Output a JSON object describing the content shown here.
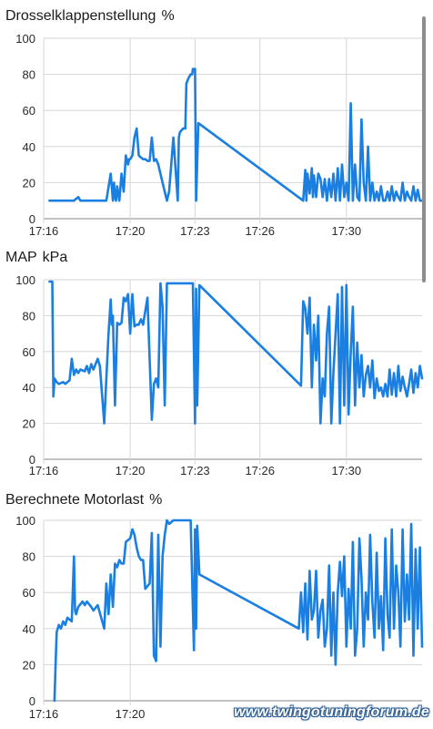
{
  "chart_data": [
    {
      "type": "line",
      "title": "Drosselklappenstellung",
      "unit": "%",
      "x_ticks": [
        "17:16",
        "17:20",
        "17:23",
        "17:26",
        "17:30"
      ],
      "x_tick_minutes": [
        16,
        20,
        23,
        26,
        30
      ],
      "xlim_minutes": [
        16,
        33.5
      ],
      "y_ticks": [
        "0",
        "20",
        "40",
        "60",
        "80",
        "100"
      ],
      "ylim": [
        0,
        100
      ],
      "grid": true,
      "color": "#1a7fe0",
      "series": [
        {
          "x": [
            16.27,
            16.9,
            17.4,
            17.6,
            17.7,
            17.9,
            18.4,
            18.9,
            19.1,
            19.2,
            19.25,
            19.3,
            19.35,
            19.4,
            19.5,
            19.6,
            19.7,
            19.8,
            19.9,
            19.95,
            20.0,
            20.1,
            20.2,
            20.3,
            20.4,
            20.6,
            20.7,
            20.8,
            20.9,
            21.0,
            21.1,
            21.2,
            21.3,
            21.5,
            21.7,
            21.8,
            22.0,
            22.2,
            22.25,
            22.3,
            22.45,
            22.55,
            22.6,
            22.7,
            22.8,
            22.83,
            22.87,
            22.9,
            23.0,
            23.05,
            23.15,
            28.0,
            28.1,
            28.15,
            28.2,
            28.3,
            28.4,
            28.45,
            28.5,
            28.6,
            28.7,
            28.8,
            28.9,
            29.0,
            29.1,
            29.2,
            29.3,
            29.4,
            29.5,
            29.6,
            29.7,
            29.8,
            29.9,
            30.0,
            30.1,
            30.2,
            30.3,
            30.4,
            30.5,
            30.6,
            30.7,
            30.8,
            30.9,
            31.0,
            31.1,
            31.2,
            31.3,
            31.4,
            31.5,
            31.6,
            31.7,
            31.8,
            31.9,
            32.0,
            32.1,
            32.2,
            32.3,
            32.4,
            32.5,
            32.6,
            32.7,
            32.8,
            32.9,
            33.0,
            33.1,
            33.2,
            33.3,
            33.4,
            33.5
          ],
          "y": [
            10,
            10,
            10,
            12,
            10,
            10,
            10,
            10,
            25,
            10,
            20,
            12,
            10,
            18,
            10,
            25,
            15,
            35,
            30,
            33,
            33,
            35,
            45,
            50,
            35,
            33,
            33,
            32,
            32,
            45,
            32,
            33,
            30,
            20,
            10,
            15,
            45,
            10,
            45,
            48,
            50,
            50,
            75,
            78,
            80,
            80,
            80,
            83,
            83,
            10,
            53,
            10,
            27,
            10,
            25,
            14,
            28,
            12,
            24,
            12,
            25,
            22,
            12,
            22,
            10,
            22,
            12,
            25,
            10,
            28,
            10,
            30,
            12,
            20,
            10,
            64,
            10,
            30,
            12,
            10,
            55,
            20,
            10,
            40,
            10,
            20,
            10,
            15,
            10,
            18,
            10,
            10,
            15,
            10,
            18,
            10,
            15,
            12,
            10,
            20,
            10,
            15,
            12,
            10,
            18,
            10,
            16,
            10,
            10
          ],
          "label": ""
        }
      ]
    },
    {
      "type": "line",
      "title": "MAP",
      "unit": "kPa",
      "x_ticks": [
        "17:16",
        "17:20",
        "17:23",
        "17:26",
        "17:30"
      ],
      "x_tick_minutes": [
        16,
        20,
        23,
        26,
        30
      ],
      "xlim_minutes": [
        16,
        33.5
      ],
      "y_ticks": [
        "0",
        "20",
        "40",
        "60",
        "80",
        "100"
      ],
      "ylim": [
        0,
        100
      ],
      "grid": true,
      "color": "#1a7fe0",
      "series": [
        {
          "x": [
            16.27,
            16.35,
            16.4,
            16.45,
            16.5,
            16.6,
            16.7,
            16.9,
            17.0,
            17.1,
            17.2,
            17.3,
            17.4,
            17.5,
            17.6,
            17.7,
            17.9,
            18.0,
            18.1,
            18.2,
            18.3,
            18.5,
            18.6,
            18.8,
            18.9,
            19.0,
            19.1,
            19.15,
            19.2,
            19.3,
            19.4,
            19.5,
            19.6,
            19.7,
            19.8,
            19.9,
            20.0,
            20.1,
            20.2,
            20.3,
            20.4,
            20.5,
            20.6,
            20.8,
            21.0,
            21.1,
            21.2,
            21.3,
            21.4,
            21.5,
            21.6,
            21.7,
            21.8,
            21.9,
            22.0,
            22.1,
            22.2,
            22.3,
            22.5,
            22.7,
            22.9,
            23.0,
            23.05,
            23.1,
            23.2,
            27.9,
            28.0,
            28.1,
            28.2,
            28.3,
            28.4,
            28.5,
            28.6,
            28.7,
            28.8,
            28.9,
            29.0,
            29.1,
            29.2,
            29.3,
            29.4,
            29.5,
            29.6,
            29.7,
            29.8,
            29.9,
            30.0,
            30.1,
            30.2,
            30.3,
            30.4,
            30.5,
            30.6,
            30.7,
            30.8,
            30.9,
            31.0,
            31.1,
            31.2,
            31.3,
            31.4,
            31.5,
            31.6,
            31.7,
            31.8,
            31.9,
            32.0,
            32.1,
            32.2,
            32.3,
            32.4,
            32.5,
            32.6,
            32.7,
            32.8,
            32.9,
            33.0,
            33.1,
            33.2,
            33.3,
            33.4,
            33.5
          ],
          "y": [
            99,
            99,
            99,
            35,
            45,
            43,
            42,
            43,
            42,
            43,
            44,
            56,
            47,
            50,
            48,
            50,
            49,
            52,
            48,
            53,
            50,
            56,
            52,
            20,
            45,
            70,
            89,
            75,
            80,
            30,
            76,
            75,
            76,
            90,
            88,
            92,
            70,
            92,
            74,
            75,
            75,
            78,
            75,
            90,
            22,
            42,
            45,
            40,
            98,
            85,
            30,
            98,
            98,
            98,
            98,
            98,
            98,
            98,
            98,
            98,
            98,
            20,
            95,
            30,
            97,
            41,
            88,
            84,
            70,
            90,
            40,
            75,
            55,
            80,
            20,
            45,
            35,
            70,
            85,
            20,
            48,
            70,
            92,
            20,
            96,
            30,
            97,
            25,
            60,
            85,
            30,
            65,
            40,
            58,
            35,
            47,
            52,
            40,
            55,
            34,
            45,
            38,
            40,
            35,
            42,
            35,
            50,
            36,
            48,
            35,
            52,
            38,
            46,
            40,
            35,
            42,
            50,
            37,
            48,
            40,
            52,
            45
          ],
          "label": ""
        }
      ]
    },
    {
      "type": "line",
      "title": "Berechnete Motorlast",
      "unit": "%",
      "x_ticks": [
        "17:16",
        "17:20"
      ],
      "x_tick_minutes": [
        16,
        20
      ],
      "xlim_minutes": [
        16,
        33.5
      ],
      "y_ticks": [
        "0",
        "20",
        "40",
        "60",
        "80",
        "100"
      ],
      "ylim": [
        0,
        100
      ],
      "grid": true,
      "color": "#1a7fe0",
      "series": [
        {
          "x": [
            16.5,
            16.55,
            16.6,
            16.7,
            16.8,
            16.9,
            17.0,
            17.1,
            17.3,
            17.4,
            17.45,
            17.5,
            17.6,
            17.8,
            17.9,
            18.0,
            18.2,
            18.3,
            18.5,
            18.8,
            18.9,
            19.0,
            19.1,
            19.2,
            19.3,
            19.4,
            19.5,
            19.6,
            19.7,
            19.8,
            20.0,
            20.1,
            20.2,
            20.3,
            20.4,
            20.5,
            20.6,
            20.7,
            20.9,
            21.0,
            21.1,
            21.2,
            21.3,
            21.4,
            21.5,
            21.6,
            21.7,
            21.8,
            22.0,
            22.1,
            22.3,
            22.5,
            22.8,
            22.95,
            23.0,
            23.05,
            23.1,
            23.2,
            27.8,
            27.9,
            28.0,
            28.1,
            28.2,
            28.3,
            28.4,
            28.5,
            28.6,
            28.7,
            28.8,
            28.9,
            29.0,
            29.1,
            29.2,
            29.3,
            29.4,
            29.5,
            29.6,
            29.7,
            29.8,
            29.9,
            30.0,
            30.1,
            30.2,
            30.3,
            30.4,
            30.5,
            30.6,
            30.7,
            30.8,
            30.9,
            31.0,
            31.1,
            31.2,
            31.3,
            31.4,
            31.5,
            31.6,
            31.7,
            31.8,
            31.9,
            32.0,
            32.1,
            32.2,
            32.3,
            32.4,
            32.5,
            32.6,
            32.7,
            32.8,
            32.9,
            33.0,
            33.1,
            33.2,
            33.3,
            33.4,
            33.5
          ],
          "y": [
            0,
            20,
            38,
            42,
            40,
            44,
            42,
            46,
            44,
            80,
            50,
            48,
            52,
            55,
            53,
            55,
            52,
            50,
            53,
            40,
            65,
            48,
            70,
            52,
            76,
            74,
            78,
            76,
            76,
            88,
            90,
            95,
            92,
            85,
            80,
            78,
            78,
            62,
            65,
            93,
            25,
            22,
            92,
            30,
            80,
            92,
            100,
            98,
            100,
            100,
            100,
            100,
            100,
            28,
            95,
            40,
            97,
            70,
            40,
            60,
            38,
            65,
            34,
            72,
            45,
            50,
            72,
            35,
            50,
            56,
            30,
            40,
            75,
            25,
            60,
            20,
            60,
            77,
            58,
            80,
            30,
            62,
            40,
            88,
            25,
            40,
            90,
            68,
            30,
            60,
            45,
            92,
            55,
            35,
            82,
            40,
            58,
            28,
            90,
            48,
            35,
            95,
            40,
            75,
            60,
            30,
            95,
            44,
            70,
            45,
            98,
            25,
            84,
            40,
            85,
            30
          ],
          "label": ""
        }
      ]
    }
  ],
  "watermark": "www.twingotuningforum.de"
}
